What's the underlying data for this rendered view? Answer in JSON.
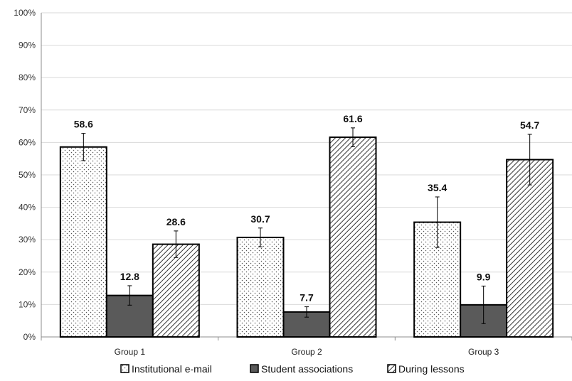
{
  "chart_data": {
    "type": "bar",
    "categories": [
      "Group 1",
      "Group 2",
      "Group 3"
    ],
    "series": [
      {
        "name": "Institutional e-mail",
        "values": [
          58.6,
          30.7,
          35.4
        ],
        "errors": [
          4.2,
          2.9,
          7.8
        ],
        "pattern": "dots"
      },
      {
        "name": "Student associations",
        "values": [
          12.8,
          7.7,
          9.9
        ],
        "errors": [
          3.0,
          1.6,
          5.8
        ],
        "pattern": "dark"
      },
      {
        "name": "During lessons",
        "values": [
          28.6,
          61.6,
          54.7
        ],
        "errors": [
          4.1,
          2.9,
          7.8
        ],
        "pattern": "hatch"
      }
    ],
    "y_ticks": [
      "0%",
      "10%",
      "20%",
      "30%",
      "40%",
      "50%",
      "60%",
      "70%",
      "80%",
      "90%",
      "100%"
    ],
    "data_labels": [
      [
        "58.6",
        "30.7",
        "35.4"
      ],
      [
        "12.8",
        "7.7",
        "9.9"
      ],
      [
        "28.6",
        "61.6",
        "54.7"
      ]
    ],
    "ylim": [
      0,
      100
    ],
    "grid": true,
    "legend": "bottom",
    "title": "",
    "xlabel": "",
    "ylabel": ""
  }
}
